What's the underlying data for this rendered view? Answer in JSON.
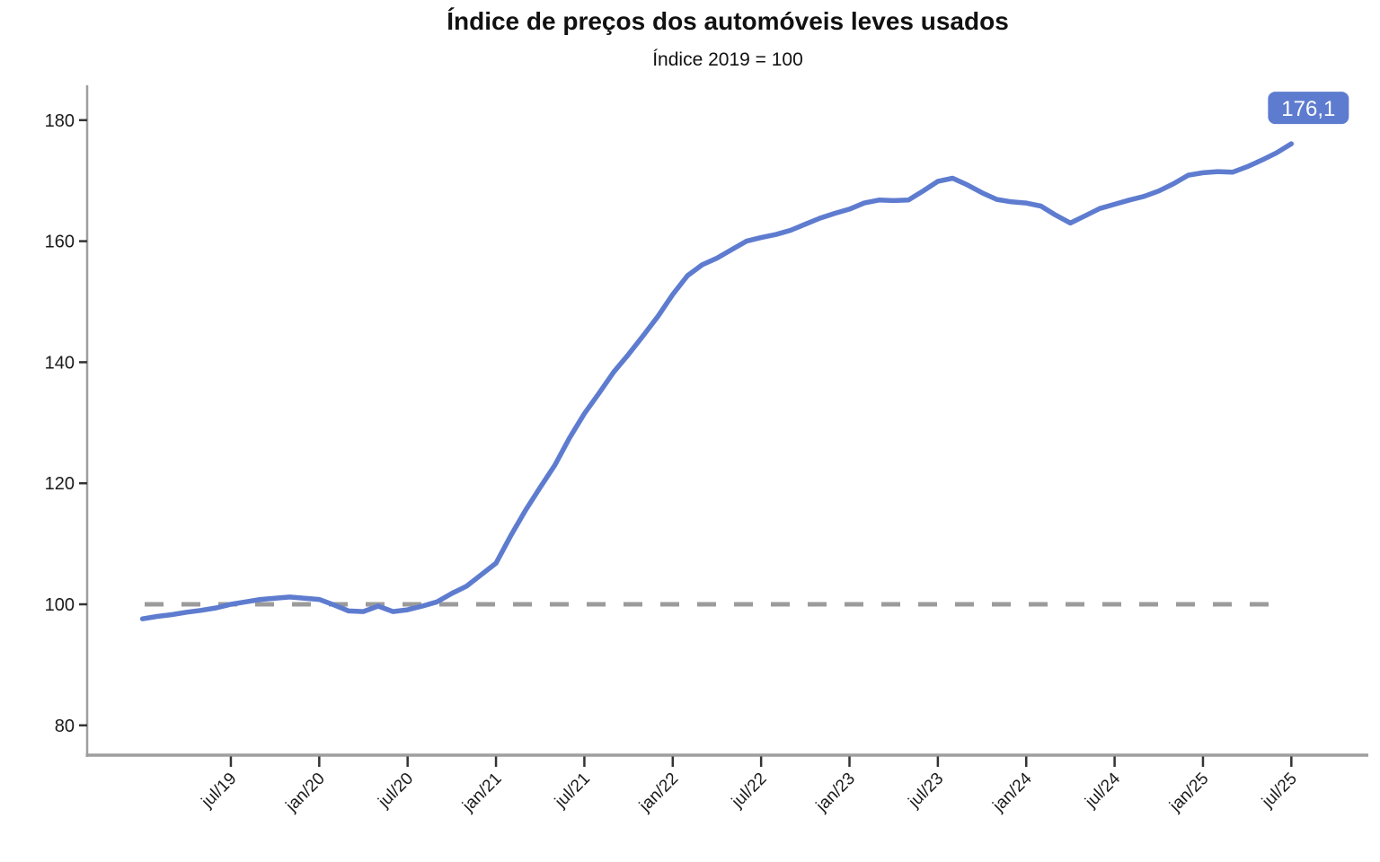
{
  "chart": {
    "title": "Índice de preços dos automóveis leves usados",
    "subtitle": "Índice 2019 = 100",
    "annotation": {
      "label": "176,1",
      "value": 176.1
    },
    "colors": {
      "line": "#5e7ccf",
      "badge_fill": "#5e7ccf",
      "badge_text": "#ffffff",
      "reference_line": "#9b9b9b",
      "axis_line": "#9e9e9e",
      "tick_mark": "#333333",
      "tick_text": "#1a1a1a",
      "title_text": "#111111"
    }
  },
  "chart_data": {
    "type": "line",
    "title": "Índice de preços dos automóveis leves usados",
    "subtitle": "Índice 2019 = 100",
    "xlabel": "",
    "ylabel": "",
    "grid": false,
    "legend": false,
    "ylim": [
      75,
      185
    ],
    "yticks": [
      80,
      100,
      120,
      140,
      160,
      180
    ],
    "xticks": [
      "jul/19",
      "jan/20",
      "jul/20",
      "jan/21",
      "jul/21",
      "jan/22",
      "jul/22",
      "jan/23",
      "jul/23",
      "jan/24",
      "jul/24",
      "jan/25",
      "jul/25"
    ],
    "xtick_month_index": [
      6,
      12,
      18,
      24,
      30,
      36,
      42,
      48,
      54,
      60,
      66,
      72,
      78
    ],
    "reference_line": {
      "value": 100,
      "style": "dashed"
    },
    "last_point_label": "176,1",
    "x": [
      "jan/19",
      "fev/19",
      "mar/19",
      "abr/19",
      "mai/19",
      "jun/19",
      "jul/19",
      "ago/19",
      "set/19",
      "out/19",
      "nov/19",
      "dez/19",
      "jan/20",
      "fev/20",
      "mar/20",
      "abr/20",
      "mai/20",
      "jun/20",
      "jul/20",
      "ago/20",
      "set/20",
      "out/20",
      "nov/20",
      "dez/20",
      "jan/21",
      "fev/21",
      "mar/21",
      "abr/21",
      "mai/21",
      "jun/21",
      "jul/21",
      "ago/21",
      "set/21",
      "out/21",
      "nov/21",
      "dez/21",
      "jan/22",
      "fev/22",
      "mar/22",
      "abr/22",
      "mai/22",
      "jun/22",
      "jul/22",
      "ago/22",
      "set/22",
      "out/22",
      "nov/22",
      "dez/22",
      "jan/23",
      "fev/23",
      "mar/23",
      "abr/23",
      "mai/23",
      "jun/23",
      "jul/23",
      "ago/23",
      "set/23",
      "out/23",
      "nov/23",
      "dez/23",
      "jan/24",
      "fev/24",
      "mar/24",
      "abr/24",
      "mai/24",
      "jun/24",
      "jul/24",
      "ago/24",
      "set/24",
      "out/24",
      "nov/24",
      "dez/24",
      "jan/25",
      "fev/25",
      "mar/25",
      "abr/25",
      "mai/25",
      "jun/25",
      "jul/25"
    ],
    "values": [
      97.6,
      98.0,
      98.3,
      98.7,
      99.0,
      99.4,
      100.0,
      100.4,
      100.8,
      101.0,
      101.2,
      101.0,
      100.8,
      99.9,
      98.9,
      98.8,
      99.7,
      98.8,
      99.1,
      99.7,
      100.4,
      101.8,
      103.0,
      104.9,
      106.8,
      111.3,
      115.5,
      119.3,
      123.0,
      127.5,
      131.5,
      134.9,
      138.4,
      141.3,
      144.4,
      147.6,
      151.2,
      154.3,
      156.1,
      157.2,
      158.6,
      160.0,
      160.6,
      161.1,
      161.8,
      162.8,
      163.8,
      164.6,
      165.3,
      166.3,
      166.8,
      166.7,
      166.8,
      168.3,
      169.9,
      170.4,
      169.3,
      168.0,
      166.9,
      166.5,
      166.3,
      165.8,
      164.3,
      163.0,
      164.2,
      165.4,
      166.1,
      166.8,
      167.4,
      168.3,
      169.5,
      170.9,
      171.3,
      171.5,
      171.4,
      172.3,
      173.4,
      174.6,
      176.1
    ]
  }
}
